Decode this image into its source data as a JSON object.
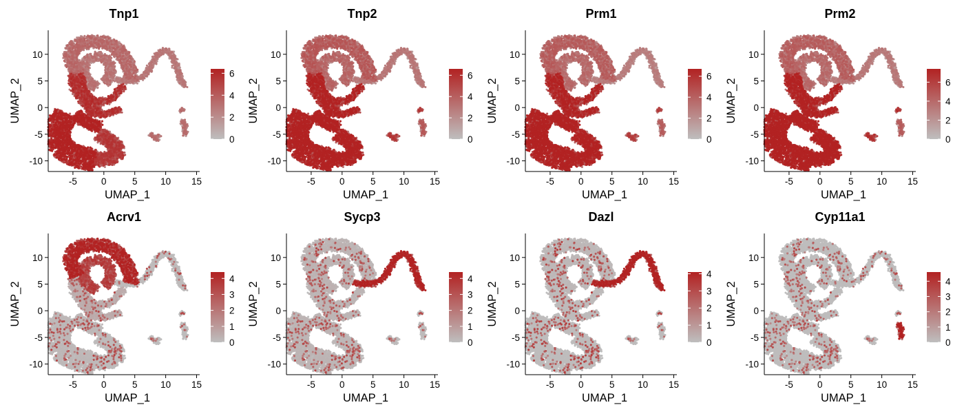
{
  "figure": {
    "colors": {
      "low": "#BEBEBE",
      "high": "#B22222",
      "axis": "#000000",
      "background": "#FFFFFF"
    }
  },
  "chart_data": [
    {
      "type": "scatter",
      "title": "Tnp1",
      "xlabel": "UMAP_1",
      "ylabel": "UMAP_2",
      "xlim": [
        -9,
        15.5
      ],
      "ylim": [
        -12,
        14.5
      ],
      "xticks": [
        -5,
        0,
        5,
        10,
        15
      ],
      "xtick_labels": [
        "-5",
        "0",
        "5",
        "10",
        "15"
      ],
      "yticks": [
        -10,
        -5,
        0,
        5,
        10
      ],
      "ytick_labels": [
        "-10",
        "-5",
        "0",
        "5",
        "10"
      ],
      "legend": {
        "position": "right",
        "min": 0,
        "max": 6.4,
        "ticks": [
          0,
          2,
          4,
          6
        ],
        "tick_labels": [
          "0",
          "2",
          "4",
          "6"
        ]
      },
      "expression_profile": {
        "far": 2.3,
        "ring": 2.8,
        "loop": 2.5,
        "mid": 4.6,
        "lower": 5.5,
        "tip": 4.3,
        "pieces": 2.6,
        "cyp": 2.6
      },
      "grid": false
    },
    {
      "type": "scatter",
      "title": "Tnp2",
      "xlabel": "UMAP_1",
      "ylabel": "UMAP_2",
      "xlim": [
        -9,
        15.5
      ],
      "ylim": [
        -12,
        14.5
      ],
      "xticks": [
        -5,
        0,
        5,
        10,
        15
      ],
      "xtick_labels": [
        "-5",
        "0",
        "5",
        "10",
        "15"
      ],
      "yticks": [
        -10,
        -5,
        0,
        5,
        10
      ],
      "ytick_labels": [
        "-10",
        "-5",
        "0",
        "5",
        "10"
      ],
      "legend": {
        "position": "right",
        "min": 0,
        "max": 6.6,
        "ticks": [
          0,
          2,
          4,
          6
        ],
        "tick_labels": [
          "0",
          "2",
          "4",
          "6"
        ]
      },
      "expression_profile": {
        "far": 2.4,
        "ring": 3.4,
        "loop": 3.0,
        "mid": 5.3,
        "lower": 6.0,
        "tip": 5.6,
        "pieces": 4.4,
        "cyp": 3.3
      },
      "grid": false
    },
    {
      "type": "scatter",
      "title": "Prm1",
      "xlabel": "UMAP_1",
      "ylabel": "UMAP_2",
      "xlim": [
        -9,
        15.5
      ],
      "ylim": [
        -12,
        14.5
      ],
      "xticks": [
        -5,
        0,
        5,
        10,
        15
      ],
      "xtick_labels": [
        "-5",
        "0",
        "5",
        "10",
        "15"
      ],
      "yticks": [
        -10,
        -5,
        0,
        5,
        10
      ],
      "ytick_labels": [
        "-10",
        "-5",
        "0",
        "5",
        "10"
      ],
      "legend": {
        "position": "right",
        "min": 0,
        "max": 6.7,
        "ticks": [
          0,
          2,
          4,
          6
        ],
        "tick_labels": [
          "0",
          "2",
          "4",
          "6"
        ]
      },
      "expression_profile": {
        "far": 2.2,
        "ring": 3.3,
        "loop": 2.9,
        "mid": 5.2,
        "lower": 6.1,
        "tip": 5.5,
        "pieces": 4.3,
        "cyp": 3.2
      },
      "grid": false
    },
    {
      "type": "scatter",
      "title": "Prm2",
      "xlabel": "UMAP_1",
      "ylabel": "UMAP_2",
      "xlim": [
        -9,
        15.5
      ],
      "ylim": [
        -12,
        14.5
      ],
      "xticks": [
        -5,
        0,
        5,
        10,
        15
      ],
      "xtick_labels": [
        "-5",
        "0",
        "5",
        "10",
        "15"
      ],
      "yticks": [
        -10,
        -5,
        0,
        5,
        10
      ],
      "ytick_labels": [
        "-10",
        "-5",
        "0",
        "5",
        "10"
      ],
      "legend": {
        "position": "right",
        "min": 0,
        "max": 7.4,
        "ticks": [
          0,
          2,
          4,
          6
        ],
        "tick_labels": [
          "0",
          "2",
          "4",
          "6"
        ]
      },
      "expression_profile": {
        "far": 2.6,
        "ring": 3.6,
        "loop": 3.2,
        "mid": 6.0,
        "lower": 7.0,
        "tip": 6.8,
        "pieces": 5.2,
        "cyp": 3.6
      },
      "grid": false
    },
    {
      "type": "scatter",
      "title": "Acrv1",
      "xlabel": "UMAP_1",
      "ylabel": "UMAP_2",
      "xlim": [
        -9,
        15.5
      ],
      "ylim": [
        -12,
        14.5
      ],
      "xticks": [
        -5,
        0,
        5,
        10,
        15
      ],
      "xtick_labels": [
        "-5",
        "0",
        "5",
        "10",
        "15"
      ],
      "yticks": [
        -10,
        -5,
        0,
        5,
        10
      ],
      "ytick_labels": [
        "-10",
        "-5",
        "0",
        "5",
        "10"
      ],
      "legend": {
        "position": "right",
        "min": 0,
        "max": 4.4,
        "ticks": [
          0,
          1,
          2,
          3,
          4
        ],
        "tick_labels": [
          "0",
          "1",
          "2",
          "3",
          "4"
        ]
      },
      "expression_profile": {
        "far": 0.1,
        "ring": 3.6,
        "loop": 2.9,
        "mid": 0.6,
        "lower": 0.2,
        "tip": 0.1,
        "pieces": 0.05,
        "cyp": 0.05
      },
      "grid": false
    },
    {
      "type": "scatter",
      "title": "Sycp3",
      "xlabel": "UMAP_1",
      "ylabel": "UMAP_2",
      "xlim": [
        -9,
        15.5
      ],
      "ylim": [
        -12,
        14.5
      ],
      "xticks": [
        -5,
        0,
        5,
        10,
        15
      ],
      "xtick_labels": [
        "-5",
        "0",
        "5",
        "10",
        "15"
      ],
      "yticks": [
        -10,
        -5,
        0,
        5,
        10
      ],
      "ytick_labels": [
        "-10",
        "-5",
        "0",
        "5",
        "10"
      ],
      "legend": {
        "position": "right",
        "min": 0,
        "max": 4.4,
        "ticks": [
          0,
          1,
          2,
          3,
          4
        ],
        "tick_labels": [
          "0",
          "1",
          "2",
          "3",
          "4"
        ]
      },
      "expression_profile": {
        "far": 3.7,
        "ring": 0.35,
        "loop": 0.4,
        "mid": 0.3,
        "lower": 0.3,
        "tip": 0.2,
        "pieces": 0.1,
        "cyp": 0.1
      },
      "grid": false
    },
    {
      "type": "scatter",
      "title": "Dazl",
      "xlabel": "UMAP_1",
      "ylabel": "UMAP_2",
      "xlim": [
        -9,
        15.5
      ],
      "ylim": [
        -12,
        14.5
      ],
      "xticks": [
        -5,
        0,
        5,
        10,
        15
      ],
      "xtick_labels": [
        "-5",
        "0",
        "5",
        "10",
        "15"
      ],
      "yticks": [
        -10,
        -5,
        0,
        5,
        10
      ],
      "ytick_labels": [
        "-10",
        "-5",
        "0",
        "5",
        "10"
      ],
      "legend": {
        "position": "right",
        "min": 0,
        "max": 4.1,
        "ticks": [
          0,
          1,
          2,
          3,
          4
        ],
        "tick_labels": [
          "0",
          "1",
          "2",
          "3",
          "4"
        ]
      },
      "expression_profile": {
        "far": 3.5,
        "ring": 0.2,
        "loop": 0.2,
        "mid": 0.1,
        "lower": 0.05,
        "tip": 0.05,
        "pieces": 0.05,
        "cyp": 0.05
      },
      "grid": false
    },
    {
      "type": "scatter",
      "title": "Cyp11a1",
      "xlabel": "UMAP_1",
      "ylabel": "UMAP_2",
      "xlim": [
        -9,
        15.5
      ],
      "ylim": [
        -12,
        14.5
      ],
      "xticks": [
        -5,
        0,
        5,
        10,
        15
      ],
      "xtick_labels": [
        "-5",
        "0",
        "5",
        "10",
        "15"
      ],
      "yticks": [
        -10,
        -5,
        0,
        5,
        10
      ],
      "ytick_labels": [
        "-10",
        "-5",
        "0",
        "5",
        "10"
      ],
      "legend": {
        "position": "right",
        "min": 0,
        "max": 4.6,
        "ticks": [
          0,
          1,
          2,
          3,
          4
        ],
        "tick_labels": [
          "0",
          "1",
          "2",
          "3",
          "4"
        ]
      },
      "expression_profile": {
        "far": 0.05,
        "ring": 0.05,
        "loop": 0.05,
        "mid": 0.05,
        "lower": 0.05,
        "tip": 0.05,
        "pieces": 0.05,
        "cyp": 3.9
      },
      "grid": false
    }
  ]
}
